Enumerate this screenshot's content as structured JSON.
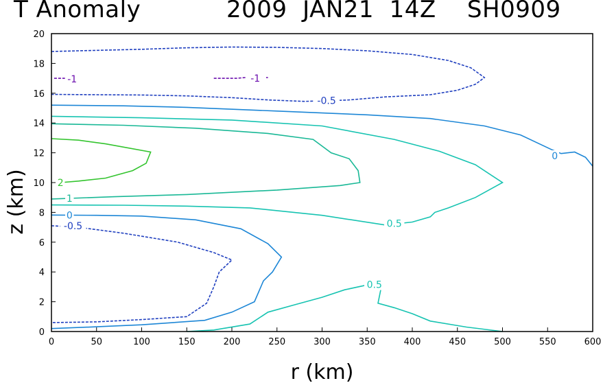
{
  "title_left": "T Anomaly",
  "title_right": "2009  JAN21  14Z    SH0909",
  "chart_data": {
    "type": "contour",
    "title": "T Anomaly   2009 JAN21 14Z   SH0909",
    "xlabel": "r (km)",
    "ylabel": "z (km)",
    "xlim": [
      0,
      600
    ],
    "ylim": [
      0,
      20
    ],
    "xticks": [
      0,
      50,
      100,
      150,
      200,
      250,
      300,
      350,
      400,
      450,
      500,
      550,
      600
    ],
    "yticks": [
      0,
      2,
      4,
      6,
      8,
      10,
      12,
      14,
      16,
      18,
      20
    ],
    "contours": [
      {
        "level": -1,
        "label": "-1",
        "color": "#6a0dad",
        "dashed": true,
        "label_at": [
          23,
          16.95
        ],
        "points": [
          [
            3,
            17
          ],
          [
            20,
            17
          ]
        ]
      },
      {
        "level": -1,
        "label": "-1",
        "color": "#6a0dad",
        "dashed": true,
        "label_at": [
          226,
          17.0
        ],
        "points": [
          [
            180,
            17
          ],
          [
            205,
            17
          ],
          [
            215,
            17.05
          ]
        ]
      },
      {
        "level": -1,
        "label": "-1",
        "color": "#6a0dad",
        "dashed": true,
        "label_at": null,
        "points": [
          [
            238,
            17.05
          ],
          [
            240,
            17.05
          ]
        ]
      },
      {
        "level": -0.5,
        "label": "-0.5",
        "color": "#1f3fbf",
        "dashed": true,
        "label_at": [
          305,
          15.5
        ],
        "points": [
          [
            0,
            18.8
          ],
          [
            30,
            18.85
          ],
          [
            100,
            18.95
          ],
          [
            150,
            19.05
          ],
          [
            200,
            19.1
          ],
          [
            250,
            19.08
          ],
          [
            300,
            19
          ],
          [
            350,
            18.85
          ],
          [
            400,
            18.6
          ],
          [
            440,
            18.2
          ],
          [
            465,
            17.7
          ],
          [
            480,
            17.05
          ],
          [
            470,
            16.6
          ],
          [
            450,
            16.2
          ],
          [
            420,
            15.9
          ],
          [
            370,
            15.75
          ],
          [
            330,
            15.55
          ],
          [
            310,
            15.5
          ],
          [
            280,
            15.45
          ],
          [
            240,
            15.55
          ],
          [
            200,
            15.7
          ],
          [
            150,
            15.82
          ],
          [
            100,
            15.88
          ],
          [
            50,
            15.9
          ],
          [
            0,
            15.92
          ]
        ]
      },
      {
        "level": 0,
        "label": "0",
        "color": "#1c86d6",
        "dashed": false,
        "label_at": [
          558,
          11.8
        ],
        "points": [
          [
            0,
            15.2
          ],
          [
            80,
            15.15
          ],
          [
            150,
            15.05
          ],
          [
            250,
            14.8
          ],
          [
            350,
            14.55
          ],
          [
            420,
            14.3
          ],
          [
            480,
            13.8
          ],
          [
            520,
            13.2
          ],
          [
            555,
            12.2
          ],
          [
            565,
            11.95
          ],
          [
            580,
            12.05
          ],
          [
            592,
            11.7
          ],
          [
            600,
            11.1
          ]
        ]
      },
      {
        "level": 0.5,
        "label": "0.5",
        "color": "#16c3b1",
        "dashed": false,
        "label_at": [
          380,
          7.25
        ],
        "points": [
          [
            0,
            14.45
          ],
          [
            100,
            14.35
          ],
          [
            200,
            14.2
          ],
          [
            300,
            13.8
          ],
          [
            380,
            12.9
          ],
          [
            430,
            12.1
          ],
          [
            470,
            11.2
          ],
          [
            500,
            10.0
          ],
          [
            470,
            9.0
          ],
          [
            440,
            8.3
          ],
          [
            425,
            8.0
          ],
          [
            420,
            7.7
          ],
          [
            400,
            7.35
          ],
          [
            370,
            7.15
          ],
          [
            300,
            7.8
          ],
          [
            220,
            8.3
          ],
          [
            150,
            8.42
          ],
          [
            80,
            8.48
          ],
          [
            0,
            8.5
          ]
        ]
      },
      {
        "level": 1,
        "label": "1",
        "color": "#19b896",
        "dashed": false,
        "label_at": [
          20,
          8.95
        ],
        "points": [
          [
            0,
            13.95
          ],
          [
            80,
            13.85
          ],
          [
            160,
            13.65
          ],
          [
            240,
            13.3
          ],
          [
            290,
            12.9
          ],
          [
            310,
            12.0
          ],
          [
            330,
            11.6
          ],
          [
            340,
            10.8
          ],
          [
            342,
            10.0
          ],
          [
            320,
            9.8
          ],
          [
            250,
            9.5
          ],
          [
            150,
            9.2
          ],
          [
            70,
            9.05
          ],
          [
            0,
            8.9
          ]
        ]
      },
      {
        "level": 2,
        "label": "2",
        "color": "#33c42e",
        "dashed": false,
        "label_at": [
          10,
          10.0
        ],
        "points": [
          [
            0,
            12.95
          ],
          [
            30,
            12.85
          ],
          [
            60,
            12.6
          ],
          [
            110,
            12.05
          ],
          [
            105,
            11.3
          ],
          [
            90,
            10.8
          ],
          [
            60,
            10.3
          ],
          [
            30,
            10.1
          ],
          [
            10,
            10.0
          ]
        ]
      },
      {
        "level": 0,
        "label": "0",
        "color": "#1c86d6",
        "dashed": false,
        "label_at": [
          20,
          7.8
        ],
        "points": [
          [
            0,
            7.82
          ],
          [
            50,
            7.8
          ],
          [
            100,
            7.75
          ],
          [
            160,
            7.5
          ],
          [
            210,
            6.9
          ],
          [
            240,
            5.9
          ],
          [
            255,
            5.0
          ],
          [
            245,
            4.0
          ],
          [
            235,
            3.4
          ],
          [
            225,
            2.0
          ],
          [
            200,
            1.3
          ],
          [
            170,
            0.75
          ],
          [
            100,
            0.45
          ],
          [
            50,
            0.32
          ],
          [
            0,
            0.2
          ]
        ]
      },
      {
        "level": -0.5,
        "label": "-0.5",
        "color": "#1f3fbf",
        "dashed": true,
        "label_at": [
          24,
          7.1
        ],
        "points": [
          [
            0,
            7.1
          ],
          [
            30,
            7.0
          ],
          [
            80,
            6.6
          ],
          [
            140,
            6.0
          ],
          [
            180,
            5.3
          ],
          [
            200,
            4.8
          ],
          [
            186,
            4.0
          ],
          [
            180,
            3.0
          ],
          [
            172,
            1.9
          ],
          [
            150,
            1.0
          ],
          [
            100,
            0.8
          ],
          [
            50,
            0.65
          ],
          [
            0,
            0.6
          ]
        ]
      },
      {
        "level": 0.5,
        "label": "0.5",
        "color": "#16c3b1",
        "dashed": false,
        "label_at": [
          358,
          3.15
        ],
        "points": [
          [
            150,
            0
          ],
          [
            180,
            0.1
          ],
          [
            220,
            0.5
          ],
          [
            240,
            1.3
          ],
          [
            270,
            1.8
          ],
          [
            300,
            2.3
          ],
          [
            325,
            2.8
          ],
          [
            348,
            3.1
          ],
          [
            358,
            3.15
          ]
        ]
      },
      {
        "level": 0.5,
        "label": "0.5",
        "color": "#16c3b1",
        "dashed": false,
        "label_at": null,
        "points": [
          [
            365,
            2.8
          ],
          [
            362,
            1.9
          ],
          [
            380,
            1.6
          ],
          [
            400,
            1.2
          ],
          [
            420,
            0.7
          ],
          [
            460,
            0.3
          ],
          [
            500,
            0
          ]
        ]
      }
    ]
  }
}
